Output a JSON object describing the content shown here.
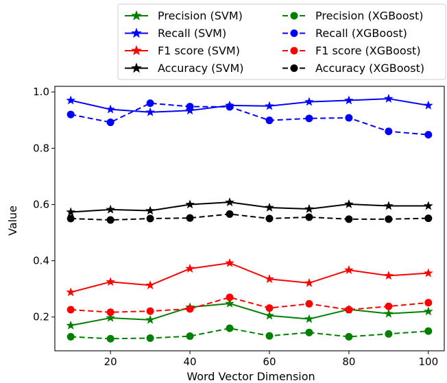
{
  "chart_data": {
    "type": "line",
    "xlabel": "Word Vector Dimension",
    "ylabel": "Value",
    "xlim": [
      6,
      104
    ],
    "ylim": [
      0.08,
      1.02
    ],
    "xticks": [
      20,
      40,
      60,
      80,
      100
    ],
    "yticks": [
      0.2,
      0.4,
      0.6,
      0.8,
      1.0
    ],
    "ytick_labels": [
      "0.2",
      "0.4",
      "0.6",
      "0.8",
      "1.0"
    ],
    "grid": false,
    "legend_position": "top-right, outside plot",
    "x": [
      10,
      20,
      30,
      40,
      50,
      60,
      70,
      80,
      90,
      100
    ],
    "series": [
      {
        "name": "Precision (SVM)",
        "color": "#008000",
        "dash": "solid",
        "marker": "star",
        "values": [
          0.17,
          0.197,
          0.19,
          0.235,
          0.248,
          0.205,
          0.193,
          0.227,
          0.212,
          0.22
        ]
      },
      {
        "name": "Recall (SVM)",
        "color": "#0000ff",
        "dash": "solid",
        "marker": "star",
        "values": [
          0.97,
          0.938,
          0.928,
          0.934,
          0.952,
          0.95,
          0.965,
          0.97,
          0.976,
          0.952
        ]
      },
      {
        "name": "F1 score (SVM)",
        "color": "#ff0000",
        "dash": "solid",
        "marker": "star",
        "values": [
          0.288,
          0.325,
          0.313,
          0.372,
          0.392,
          0.335,
          0.321,
          0.367,
          0.347,
          0.356
        ]
      },
      {
        "name": "Accuracy (SVM)",
        "color": "#000000",
        "dash": "solid",
        "marker": "star",
        "values": [
          0.573,
          0.582,
          0.578,
          0.6,
          0.608,
          0.589,
          0.584,
          0.601,
          0.595,
          0.595
        ]
      },
      {
        "name": "Precision (XGBoost)",
        "color": "#008000",
        "dash": "dashed",
        "marker": "circle",
        "values": [
          0.13,
          0.123,
          0.125,
          0.132,
          0.16,
          0.133,
          0.145,
          0.13,
          0.14,
          0.15
        ]
      },
      {
        "name": "Recall (XGBoost)",
        "color": "#0000ff",
        "dash": "dashed",
        "marker": "circle",
        "values": [
          0.92,
          0.892,
          0.96,
          0.948,
          0.947,
          0.899,
          0.906,
          0.908,
          0.86,
          0.848
        ]
      },
      {
        "name": "F1 score (XGBoost)",
        "color": "#ff0000",
        "dash": "dashed",
        "marker": "circle",
        "values": [
          0.226,
          0.217,
          0.221,
          0.229,
          0.27,
          0.232,
          0.247,
          0.226,
          0.238,
          0.251
        ]
      },
      {
        "name": "Accuracy (XGBoost)",
        "color": "#000000",
        "dash": "dashed",
        "marker": "circle",
        "values": [
          0.55,
          0.545,
          0.55,
          0.552,
          0.566,
          0.55,
          0.555,
          0.548,
          0.548,
          0.551
        ]
      }
    ]
  }
}
